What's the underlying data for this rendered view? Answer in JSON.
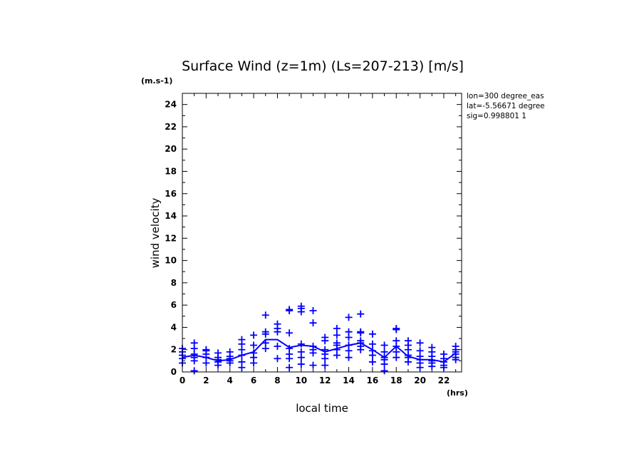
{
  "chart_data": {
    "type": "scatter",
    "title": "Surface Wind (z=1m) (Ls=207-213) [m/s]",
    "y_units": "(m.s-1)",
    "x_units": "(hrs)",
    "xlabel": "local time",
    "ylabel": "wind velocity",
    "xlim": [
      0,
      23.5
    ],
    "ylim": [
      0,
      25
    ],
    "x_ticks": [
      0,
      2,
      4,
      6,
      8,
      10,
      12,
      14,
      16,
      18,
      20,
      22
    ],
    "y_ticks": [
      0,
      2,
      4,
      6,
      8,
      10,
      12,
      14,
      16,
      18,
      20,
      22,
      24
    ],
    "info_lines": [
      "lon=300 degree_eas",
      "lat=-5.56671 degree",
      "sig=0.998801 1"
    ],
    "colors": {
      "series": "#0000ff",
      "axes": "#000000"
    },
    "grid": false,
    "series": [
      {
        "type": "scatter",
        "marker": "plus",
        "points": [
          [
            0,
            0.8
          ],
          [
            0,
            1.2
          ],
          [
            0,
            1.5
          ],
          [
            0,
            1.8
          ],
          [
            0,
            2.1
          ],
          [
            1,
            0.1
          ],
          [
            1,
            1.0
          ],
          [
            1,
            1.3
          ],
          [
            1,
            1.6
          ],
          [
            1,
            2.1
          ],
          [
            1,
            2.6
          ],
          [
            2,
            0.8
          ],
          [
            2,
            1.3
          ],
          [
            2,
            1.6
          ],
          [
            2,
            1.9
          ],
          [
            2,
            2.0
          ],
          [
            3,
            0.6
          ],
          [
            3,
            0.9
          ],
          [
            3,
            1.1
          ],
          [
            3,
            1.3
          ],
          [
            3,
            1.7
          ],
          [
            4,
            0.8
          ],
          [
            4,
            1.0
          ],
          [
            4,
            1.2
          ],
          [
            4,
            1.4
          ],
          [
            4,
            1.8
          ],
          [
            5,
            0.4
          ],
          [
            5,
            0.9
          ],
          [
            5,
            1.5
          ],
          [
            5,
            2.0
          ],
          [
            5,
            2.5
          ],
          [
            5,
            2.9
          ],
          [
            6,
            0.8
          ],
          [
            6,
            1.3
          ],
          [
            6,
            1.7
          ],
          [
            6,
            2.4
          ],
          [
            6,
            3.3
          ],
          [
            7,
            2.1
          ],
          [
            7,
            2.6
          ],
          [
            7,
            3.4
          ],
          [
            7,
            3.6
          ],
          [
            7,
            5.1
          ],
          [
            8,
            1.2
          ],
          [
            8,
            2.3
          ],
          [
            8,
            3.6
          ],
          [
            8,
            3.9
          ],
          [
            8,
            4.3
          ],
          [
            9,
            0.4
          ],
          [
            9,
            1.2
          ],
          [
            9,
            1.6
          ],
          [
            9,
            2.1
          ],
          [
            9,
            3.5
          ],
          [
            9,
            5.5
          ],
          [
            9,
            5.6
          ],
          [
            10,
            0.7
          ],
          [
            10,
            1.3
          ],
          [
            10,
            1.8
          ],
          [
            10,
            2.5
          ],
          [
            10,
            5.4
          ],
          [
            10,
            5.7
          ],
          [
            10,
            5.9
          ],
          [
            11,
            0.6
          ],
          [
            11,
            1.7
          ],
          [
            11,
            2.0
          ],
          [
            11,
            2.3
          ],
          [
            11,
            4.4
          ],
          [
            11,
            5.5
          ],
          [
            12,
            0.6
          ],
          [
            12,
            1.2
          ],
          [
            12,
            1.6
          ],
          [
            12,
            2.0
          ],
          [
            12,
            2.8
          ],
          [
            12,
            3.1
          ],
          [
            13,
            1.5
          ],
          [
            13,
            2.0
          ],
          [
            13,
            2.4
          ],
          [
            13,
            2.6
          ],
          [
            13,
            3.3
          ],
          [
            13,
            3.9
          ],
          [
            14,
            1.3
          ],
          [
            14,
            1.9
          ],
          [
            14,
            2.4
          ],
          [
            14,
            3.1
          ],
          [
            14,
            3.6
          ],
          [
            14,
            4.9
          ],
          [
            15,
            2.0
          ],
          [
            15,
            2.3
          ],
          [
            15,
            2.6
          ],
          [
            15,
            2.8
          ],
          [
            15,
            3.5
          ],
          [
            15,
            3.6
          ],
          [
            15,
            5.2
          ],
          [
            16,
            0.9
          ],
          [
            16,
            1.5
          ],
          [
            16,
            1.9
          ],
          [
            16,
            2.5
          ],
          [
            16,
            3.4
          ],
          [
            17,
            0.1
          ],
          [
            17,
            0.7
          ],
          [
            17,
            1.1
          ],
          [
            17,
            1.3
          ],
          [
            17,
            1.8
          ],
          [
            17,
            2.4
          ],
          [
            18,
            1.3
          ],
          [
            18,
            1.8
          ],
          [
            18,
            2.3
          ],
          [
            18,
            2.8
          ],
          [
            18,
            3.8
          ],
          [
            18,
            3.9
          ],
          [
            19,
            0.9
          ],
          [
            19,
            1.3
          ],
          [
            19,
            1.5
          ],
          [
            19,
            2.0
          ],
          [
            19,
            2.4
          ],
          [
            19,
            2.8
          ],
          [
            20,
            0.4
          ],
          [
            20,
            0.8
          ],
          [
            20,
            1.1
          ],
          [
            20,
            1.4
          ],
          [
            20,
            1.9
          ],
          [
            20,
            2.6
          ],
          [
            21,
            0.5
          ],
          [
            21,
            0.8
          ],
          [
            21,
            1.0
          ],
          [
            21,
            1.4
          ],
          [
            21,
            1.8
          ],
          [
            21,
            2.2
          ],
          [
            22,
            0.4
          ],
          [
            22,
            0.6
          ],
          [
            22,
            0.9
          ],
          [
            22,
            1.2
          ],
          [
            22,
            1.6
          ],
          [
            23,
            1.1
          ],
          [
            23,
            1.3
          ],
          [
            23,
            1.6
          ],
          [
            23,
            1.8
          ],
          [
            23,
            2.0
          ],
          [
            23,
            2.3
          ]
        ]
      },
      {
        "type": "line",
        "x": [
          0,
          1,
          2,
          3,
          4,
          5,
          6,
          7,
          8,
          9,
          10,
          11,
          12,
          13,
          14,
          15,
          16,
          17,
          18,
          19,
          20,
          21,
          22,
          23
        ],
        "y": [
          1.3,
          1.5,
          1.3,
          1.0,
          1.1,
          1.5,
          1.8,
          2.9,
          2.9,
          2.2,
          2.4,
          2.3,
          1.8,
          2.1,
          2.4,
          2.6,
          2.0,
          1.3,
          2.3,
          1.4,
          1.1,
          1.1,
          0.9,
          1.7
        ]
      }
    ]
  }
}
